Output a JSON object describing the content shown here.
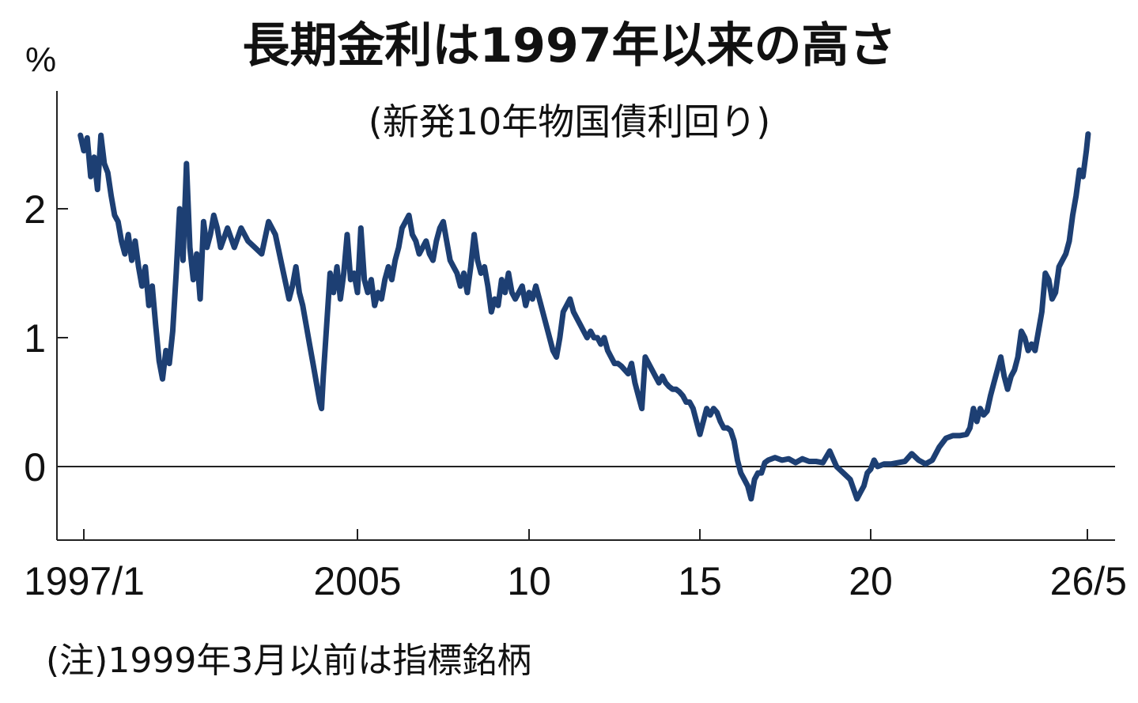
{
  "chart_data": {
    "type": "line",
    "title": "長期金利は1997年以来の高さ",
    "subtitle": "(新発10年物国債利回り)",
    "unit_label": "%",
    "note": "(注)1999年3月以前は指標銘柄",
    "xlabel": "",
    "ylabel": "",
    "x_range": [
      1997.0,
      2026.4
    ],
    "ylim": [
      -0.55,
      2.9
    ],
    "y_ticks": [
      {
        "value": 0,
        "label": "0"
      },
      {
        "value": 1,
        "label": "1"
      },
      {
        "value": 2,
        "label": "2"
      }
    ],
    "x_ticks": [
      {
        "value": 1997.0,
        "label": "1997/1"
      },
      {
        "value": 2005.0,
        "label": "2005"
      },
      {
        "value": 2010.0,
        "label": "10"
      },
      {
        "value": 2015.0,
        "label": "15"
      },
      {
        "value": 2020.0,
        "label": "20"
      },
      {
        "value": 2026.33,
        "label": "26/5"
      }
    ],
    "grid": false,
    "zero_line": true,
    "color": "#1d3f73",
    "series": [
      {
        "values": [
          [
            1996.9,
            2.57
          ],
          [
            1997.0,
            2.45
          ],
          [
            1997.1,
            2.55
          ],
          [
            1997.2,
            2.25
          ],
          [
            1997.3,
            2.4
          ],
          [
            1997.4,
            2.15
          ],
          [
            1997.5,
            2.57
          ],
          [
            1997.6,
            2.35
          ],
          [
            1997.7,
            2.28
          ],
          [
            1997.8,
            2.1
          ],
          [
            1997.9,
            1.95
          ],
          [
            1998.0,
            1.9
          ],
          [
            1998.1,
            1.75
          ],
          [
            1998.2,
            1.65
          ],
          [
            1998.3,
            1.8
          ],
          [
            1998.4,
            1.6
          ],
          [
            1998.5,
            1.75
          ],
          [
            1998.6,
            1.55
          ],
          [
            1998.7,
            1.4
          ],
          [
            1998.8,
            1.55
          ],
          [
            1998.9,
            1.25
          ],
          [
            1999.0,
            1.4
          ],
          [
            1999.1,
            1.1
          ],
          [
            1999.2,
            0.82
          ],
          [
            1999.3,
            0.68
          ],
          [
            1999.4,
            0.9
          ],
          [
            1999.5,
            0.8
          ],
          [
            1999.6,
            1.05
          ],
          [
            1999.7,
            1.5
          ],
          [
            1999.8,
            2.0
          ],
          [
            1999.9,
            1.6
          ],
          [
            2000.0,
            2.35
          ],
          [
            2000.1,
            1.7
          ],
          [
            2000.2,
            1.45
          ],
          [
            2000.3,
            1.65
          ],
          [
            2000.4,
            1.3
          ],
          [
            2000.5,
            1.9
          ],
          [
            2000.6,
            1.7
          ],
          [
            2000.7,
            1.8
          ],
          [
            2000.8,
            1.95
          ],
          [
            2000.9,
            1.85
          ],
          [
            2001.0,
            1.7
          ],
          [
            2001.2,
            1.85
          ],
          [
            2001.4,
            1.7
          ],
          [
            2001.6,
            1.85
          ],
          [
            2001.8,
            1.75
          ],
          [
            2002.0,
            1.7
          ],
          [
            2002.2,
            1.65
          ],
          [
            2002.4,
            1.9
          ],
          [
            2002.6,
            1.8
          ],
          [
            2002.8,
            1.55
          ],
          [
            2003.0,
            1.3
          ],
          [
            2003.1,
            1.4
          ],
          [
            2003.2,
            1.55
          ],
          [
            2003.3,
            1.35
          ],
          [
            2003.4,
            1.25
          ],
          [
            2003.5,
            1.1
          ],
          [
            2003.6,
            0.95
          ],
          [
            2003.7,
            0.8
          ],
          [
            2003.8,
            0.65
          ],
          [
            2003.9,
            0.5
          ],
          [
            2003.95,
            0.45
          ],
          [
            2004.0,
            0.7
          ],
          [
            2004.1,
            1.1
          ],
          [
            2004.2,
            1.5
          ],
          [
            2004.3,
            1.35
          ],
          [
            2004.4,
            1.55
          ],
          [
            2004.5,
            1.3
          ],
          [
            2004.6,
            1.5
          ],
          [
            2004.7,
            1.8
          ],
          [
            2004.8,
            1.45
          ],
          [
            2004.9,
            1.5
          ],
          [
            2005.0,
            1.35
          ],
          [
            2005.1,
            1.85
          ],
          [
            2005.2,
            1.45
          ],
          [
            2005.3,
            1.35
          ],
          [
            2005.4,
            1.45
          ],
          [
            2005.5,
            1.25
          ],
          [
            2005.6,
            1.35
          ],
          [
            2005.7,
            1.3
          ],
          [
            2005.8,
            1.45
          ],
          [
            2005.9,
            1.55
          ],
          [
            2006.0,
            1.45
          ],
          [
            2006.1,
            1.6
          ],
          [
            2006.2,
            1.7
          ],
          [
            2006.3,
            1.85
          ],
          [
            2006.4,
            1.9
          ],
          [
            2006.5,
            1.95
          ],
          [
            2006.6,
            1.8
          ],
          [
            2006.7,
            1.75
          ],
          [
            2006.8,
            1.65
          ],
          [
            2006.9,
            1.7
          ],
          [
            2007.0,
            1.75
          ],
          [
            2007.1,
            1.65
          ],
          [
            2007.2,
            1.6
          ],
          [
            2007.3,
            1.75
          ],
          [
            2007.4,
            1.85
          ],
          [
            2007.5,
            1.9
          ],
          [
            2007.6,
            1.75
          ],
          [
            2007.7,
            1.6
          ],
          [
            2007.8,
            1.55
          ],
          [
            2007.9,
            1.5
          ],
          [
            2008.0,
            1.4
          ],
          [
            2008.1,
            1.5
          ],
          [
            2008.2,
            1.35
          ],
          [
            2008.3,
            1.55
          ],
          [
            2008.4,
            1.8
          ],
          [
            2008.5,
            1.6
          ],
          [
            2008.6,
            1.5
          ],
          [
            2008.7,
            1.55
          ],
          [
            2008.8,
            1.4
          ],
          [
            2008.9,
            1.2
          ],
          [
            2009.0,
            1.3
          ],
          [
            2009.1,
            1.25
          ],
          [
            2009.2,
            1.45
          ],
          [
            2009.3,
            1.35
          ],
          [
            2009.4,
            1.5
          ],
          [
            2009.5,
            1.35
          ],
          [
            2009.6,
            1.3
          ],
          [
            2009.8,
            1.4
          ],
          [
            2009.9,
            1.25
          ],
          [
            2010.0,
            1.35
          ],
          [
            2010.1,
            1.3
          ],
          [
            2010.2,
            1.4
          ],
          [
            2010.3,
            1.3
          ],
          [
            2010.4,
            1.2
          ],
          [
            2010.5,
            1.1
          ],
          [
            2010.6,
            1.0
          ],
          [
            2010.7,
            0.9
          ],
          [
            2010.8,
            0.85
          ],
          [
            2010.9,
            1.0
          ],
          [
            2011.0,
            1.2
          ],
          [
            2011.1,
            1.25
          ],
          [
            2011.2,
            1.3
          ],
          [
            2011.3,
            1.2
          ],
          [
            2011.4,
            1.15
          ],
          [
            2011.5,
            1.1
          ],
          [
            2011.6,
            1.05
          ],
          [
            2011.7,
            1.0
          ],
          [
            2011.8,
            1.05
          ],
          [
            2011.9,
            1.0
          ],
          [
            2012.0,
            1.0
          ],
          [
            2012.1,
            0.95
          ],
          [
            2012.2,
            1.0
          ],
          [
            2012.3,
            0.9
          ],
          [
            2012.4,
            0.85
          ],
          [
            2012.5,
            0.8
          ],
          [
            2012.6,
            0.8
          ],
          [
            2012.7,
            0.78
          ],
          [
            2012.8,
            0.75
          ],
          [
            2012.9,
            0.72
          ],
          [
            2013.0,
            0.8
          ],
          [
            2013.1,
            0.65
          ],
          [
            2013.2,
            0.55
          ],
          [
            2013.3,
            0.45
          ],
          [
            2013.4,
            0.85
          ],
          [
            2013.5,
            0.8
          ],
          [
            2013.6,
            0.75
          ],
          [
            2013.7,
            0.7
          ],
          [
            2013.8,
            0.65
          ],
          [
            2013.9,
            0.7
          ],
          [
            2014.0,
            0.65
          ],
          [
            2014.1,
            0.62
          ],
          [
            2014.2,
            0.6
          ],
          [
            2014.3,
            0.6
          ],
          [
            2014.4,
            0.58
          ],
          [
            2014.5,
            0.55
          ],
          [
            2014.6,
            0.5
          ],
          [
            2014.7,
            0.5
          ],
          [
            2014.8,
            0.45
          ],
          [
            2014.9,
            0.35
          ],
          [
            2015.0,
            0.25
          ],
          [
            2015.1,
            0.35
          ],
          [
            2015.2,
            0.45
          ],
          [
            2015.3,
            0.4
          ],
          [
            2015.4,
            0.45
          ],
          [
            2015.5,
            0.42
          ],
          [
            2015.6,
            0.35
          ],
          [
            2015.7,
            0.3
          ],
          [
            2015.8,
            0.3
          ],
          [
            2015.9,
            0.28
          ],
          [
            2016.0,
            0.2
          ],
          [
            2016.1,
            0.05
          ],
          [
            2016.2,
            -0.05
          ],
          [
            2016.3,
            -0.1
          ],
          [
            2016.4,
            -0.15
          ],
          [
            2016.5,
            -0.25
          ],
          [
            2016.6,
            -0.1
          ],
          [
            2016.7,
            -0.05
          ],
          [
            2016.8,
            -0.05
          ],
          [
            2016.9,
            0.03
          ],
          [
            2017.0,
            0.05
          ],
          [
            2017.2,
            0.07
          ],
          [
            2017.4,
            0.05
          ],
          [
            2017.6,
            0.06
          ],
          [
            2017.8,
            0.03
          ],
          [
            2018.0,
            0.06
          ],
          [
            2018.2,
            0.04
          ],
          [
            2018.4,
            0.04
          ],
          [
            2018.6,
            0.03
          ],
          [
            2018.8,
            0.12
          ],
          [
            2019.0,
            0.0
          ],
          [
            2019.2,
            -0.05
          ],
          [
            2019.4,
            -0.1
          ],
          [
            2019.6,
            -0.25
          ],
          [
            2019.7,
            -0.2
          ],
          [
            2019.8,
            -0.15
          ],
          [
            2019.9,
            -0.05
          ],
          [
            2020.0,
            -0.02
          ],
          [
            2020.1,
            0.05
          ],
          [
            2020.2,
            0.0
          ],
          [
            2020.4,
            0.02
          ],
          [
            2020.6,
            0.02
          ],
          [
            2020.8,
            0.03
          ],
          [
            2021.0,
            0.04
          ],
          [
            2021.2,
            0.1
          ],
          [
            2021.4,
            0.05
          ],
          [
            2021.6,
            0.02
          ],
          [
            2021.8,
            0.05
          ],
          [
            2022.0,
            0.15
          ],
          [
            2022.2,
            0.22
          ],
          [
            2022.4,
            0.24
          ],
          [
            2022.6,
            0.24
          ],
          [
            2022.8,
            0.25
          ],
          [
            2022.9,
            0.3
          ],
          [
            2023.0,
            0.45
          ],
          [
            2023.1,
            0.35
          ],
          [
            2023.2,
            0.45
          ],
          [
            2023.3,
            0.4
          ],
          [
            2023.4,
            0.43
          ],
          [
            2023.5,
            0.55
          ],
          [
            2023.6,
            0.65
          ],
          [
            2023.7,
            0.75
          ],
          [
            2023.8,
            0.85
          ],
          [
            2023.9,
            0.7
          ],
          [
            2024.0,
            0.6
          ],
          [
            2024.1,
            0.7
          ],
          [
            2024.2,
            0.75
          ],
          [
            2024.3,
            0.85
          ],
          [
            2024.4,
            1.05
          ],
          [
            2024.5,
            1.0
          ],
          [
            2024.6,
            0.9
          ],
          [
            2024.7,
            0.95
          ],
          [
            2024.8,
            0.9
          ],
          [
            2024.9,
            1.05
          ],
          [
            2025.0,
            1.2
          ],
          [
            2025.1,
            1.5
          ],
          [
            2025.2,
            1.45
          ],
          [
            2025.3,
            1.3
          ],
          [
            2025.4,
            1.35
          ],
          [
            2025.5,
            1.55
          ],
          [
            2025.6,
            1.6
          ],
          [
            2025.7,
            1.65
          ],
          [
            2025.8,
            1.75
          ],
          [
            2025.9,
            1.95
          ],
          [
            2026.0,
            2.1
          ],
          [
            2026.1,
            2.3
          ],
          [
            2026.2,
            2.25
          ],
          [
            2026.3,
            2.45
          ],
          [
            2026.35,
            2.58
          ]
        ]
      }
    ]
  }
}
